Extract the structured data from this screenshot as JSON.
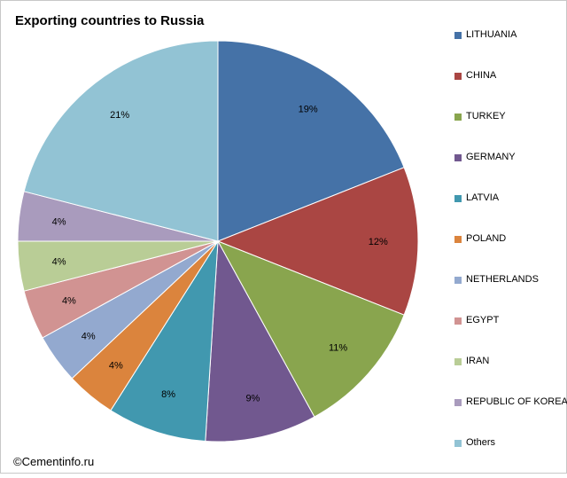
{
  "title": "Exporting countries to Russia",
  "credit": "©Cementinfo.ru",
  "chart_data": {
    "type": "pie",
    "title": "Exporting countries to Russia",
    "start_angle_deg": 0,
    "direction": "clockwise",
    "legend_position": "right",
    "categories": [
      "LITHUANIA",
      "CHINA",
      "TURKEY",
      "GERMANY",
      "LATVIA",
      "POLAND",
      "NETHERLANDS",
      "EGYPT",
      "IRAN",
      "REPUBLIC OF KOREA",
      "Others"
    ],
    "values": [
      19,
      12,
      11,
      9,
      8,
      4,
      4,
      4,
      4,
      4,
      21
    ],
    "labels": [
      "19%",
      "12%",
      "11%",
      "9%",
      "8%",
      "4%",
      "4%",
      "4%",
      "4%",
      "4%",
      "21%"
    ],
    "colors": [
      "#4572A7",
      "#AA4643",
      "#89A54E",
      "#71588F",
      "#4198AF",
      "#DB843D",
      "#93A9CF",
      "#D19392",
      "#B9CD96",
      "#A99BBD",
      "#92C3D4"
    ]
  }
}
